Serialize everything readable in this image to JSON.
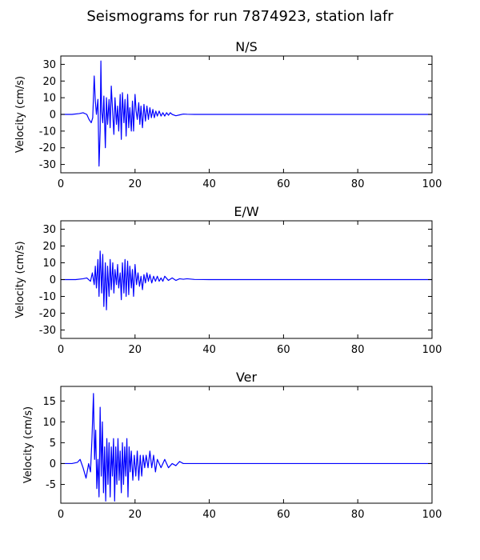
{
  "figure": {
    "title": "Seismograms for run 7874923, station lafr"
  },
  "chart_data": [
    {
      "type": "line",
      "title": "N/S",
      "xlabel": "",
      "ylabel": "Velocity (cm/s)",
      "xlim": [
        0,
        100
      ],
      "ylim": [
        -35,
        35
      ],
      "xticks": [
        0,
        20,
        40,
        60,
        80,
        100
      ],
      "yticks": [
        -30,
        -20,
        -10,
        0,
        10,
        20,
        30
      ],
      "grid": false,
      "color": "#0000ff",
      "series": [
        {
          "x": [
            0,
            3,
            5,
            6,
            7,
            7.6,
            8.2,
            8.6,
            9.0,
            9.3,
            9.6,
            10.0,
            10.3,
            10.6,
            10.8,
            11.0,
            11.3,
            11.6,
            12.0,
            12.3,
            12.6,
            13.0,
            13.3,
            13.6,
            14.0,
            14.3,
            14.6,
            15.0,
            15.3,
            15.6,
            16.0,
            16.3,
            16.6,
            17.0,
            17.3,
            17.6,
            18.0,
            18.3,
            18.6,
            19.0,
            19.3,
            19.6,
            20.0,
            20.3,
            20.6,
            21.0,
            21.3,
            21.6,
            22.0,
            22.4,
            22.8,
            23.2,
            23.6,
            24.0,
            24.4,
            24.8,
            25.2,
            25.6,
            26.0,
            26.5,
            27.0,
            27.5,
            28.0,
            28.5,
            29.0,
            29.5,
            30.0,
            31.0,
            32.0,
            33.0,
            34.0,
            36.0,
            40.0,
            60.0,
            80.0,
            100.0
          ],
          "y": [
            0,
            0,
            0.5,
            1,
            0,
            -3,
            -5,
            -2,
            23,
            8,
            0,
            9,
            -31,
            -10,
            32,
            2,
            -5,
            11,
            -20,
            10,
            -6,
            9,
            -8,
            17,
            0,
            -12,
            10,
            -6,
            5,
            -10,
            12,
            -15,
            13,
            -5,
            9,
            -13,
            12,
            -8,
            4,
            -10,
            8,
            -10,
            12,
            2,
            -3,
            7,
            -6,
            5,
            -8,
            6,
            -4,
            5,
            -3,
            4,
            -2,
            3,
            -2,
            2,
            -1,
            2,
            -1,
            1,
            -1,
            1,
            -0.5,
            1,
            0,
            -0.8,
            -0.3,
            0.2,
            0.1,
            0,
            0,
            0,
            0,
            0
          ]
        }
      ]
    },
    {
      "type": "line",
      "title": "E/W",
      "xlabel": "",
      "ylabel": "Velocity (cm/s)",
      "xlim": [
        0,
        100
      ],
      "ylim": [
        -35,
        35
      ],
      "xticks": [
        0,
        20,
        40,
        60,
        80,
        100
      ],
      "yticks": [
        -30,
        -20,
        -10,
        0,
        10,
        20,
        30
      ],
      "grid": false,
      "color": "#0000ff",
      "series": [
        {
          "x": [
            0,
            4,
            6,
            7,
            8,
            8.5,
            9.0,
            9.3,
            9.6,
            10.0,
            10.3,
            10.6,
            11.0,
            11.3,
            11.6,
            12.0,
            12.3,
            12.6,
            13.0,
            13.3,
            13.6,
            14.0,
            14.3,
            14.6,
            15.0,
            15.3,
            15.6,
            16.0,
            16.3,
            16.6,
            17.0,
            17.3,
            17.6,
            18.0,
            18.3,
            18.6,
            19.0,
            19.3,
            19.6,
            20.0,
            20.4,
            20.8,
            21.2,
            21.6,
            22.0,
            22.4,
            22.8,
            23.2,
            23.6,
            24.0,
            24.5,
            25.0,
            25.5,
            26.0,
            26.5,
            27.0,
            27.5,
            28.0,
            29.0,
            30.0,
            31.0,
            32.0,
            33.0,
            34.0,
            36.0,
            40.0,
            60.0,
            80.0,
            100.0
          ],
          "y": [
            0,
            0,
            0.5,
            1,
            -1,
            4,
            -3,
            8,
            -5,
            12,
            -10,
            17,
            -8,
            15,
            -16,
            10,
            -18,
            8,
            -10,
            12,
            -6,
            10,
            -8,
            6,
            -3,
            9,
            -5,
            4,
            -12,
            10,
            -8,
            12,
            -10,
            11,
            -9,
            8,
            -5,
            6,
            -10,
            9,
            -3,
            4,
            -4,
            2,
            -6,
            3,
            -2,
            4,
            -1,
            3,
            -2,
            2,
            -1,
            2,
            -1,
            1,
            -1,
            2,
            -0.5,
            1,
            -0.5,
            0.5,
            0.2,
            0.5,
            0.1,
            0,
            0,
            0,
            0
          ]
        }
      ]
    },
    {
      "type": "line",
      "title": "Ver",
      "xlabel": "",
      "ylabel": "Velocity (cm/s)",
      "xlim": [
        0,
        100
      ],
      "ylim": [
        -9.5,
        18.5
      ],
      "xticks": [
        0,
        20,
        40,
        60,
        80,
        100
      ],
      "yticks": [
        -5,
        0,
        5,
        10,
        15
      ],
      "grid": false,
      "color": "#0000ff",
      "series": [
        {
          "x": [
            0,
            3,
            4.5,
            5.2,
            6.0,
            6.8,
            7.5,
            8.0,
            8.4,
            8.8,
            9.1,
            9.4,
            9.7,
            10.0,
            10.3,
            10.6,
            10.9,
            11.2,
            11.5,
            11.8,
            12.1,
            12.4,
            12.7,
            13.0,
            13.3,
            13.6,
            13.9,
            14.2,
            14.5,
            14.8,
            15.1,
            15.4,
            15.7,
            16.0,
            16.3,
            16.6,
            16.9,
            17.2,
            17.5,
            17.8,
            18.1,
            18.4,
            18.7,
            19.0,
            19.4,
            19.8,
            20.2,
            20.6,
            21.0,
            21.4,
            21.8,
            22.2,
            22.6,
            23.0,
            23.5,
            24.0,
            24.5,
            25.0,
            25.5,
            26.0,
            27.0,
            28.0,
            29.0,
            30.0,
            31.0,
            32.0,
            33.0,
            35.0,
            40.0,
            60.0,
            80.0,
            100.0
          ],
          "y": [
            0,
            0,
            0.3,
            1,
            -1,
            -3.5,
            0,
            -2,
            6,
            16.8,
            1,
            8,
            -6,
            1,
            -8,
            13.5,
            -3,
            10,
            -7,
            4,
            -9,
            6,
            -5,
            5,
            -8,
            4,
            -3,
            6,
            -9,
            4,
            -5,
            6,
            -4,
            3,
            -7,
            5,
            -5,
            4,
            -3,
            6,
            -8,
            4,
            -2,
            3,
            -4,
            2,
            -3,
            3,
            -4,
            2,
            -3,
            2,
            -1,
            2,
            -1,
            3,
            -1,
            2,
            -2,
            1,
            -1,
            1,
            -1,
            0,
            -0.5,
            0.5,
            0,
            0,
            0,
            0,
            0,
            0
          ]
        }
      ]
    }
  ]
}
